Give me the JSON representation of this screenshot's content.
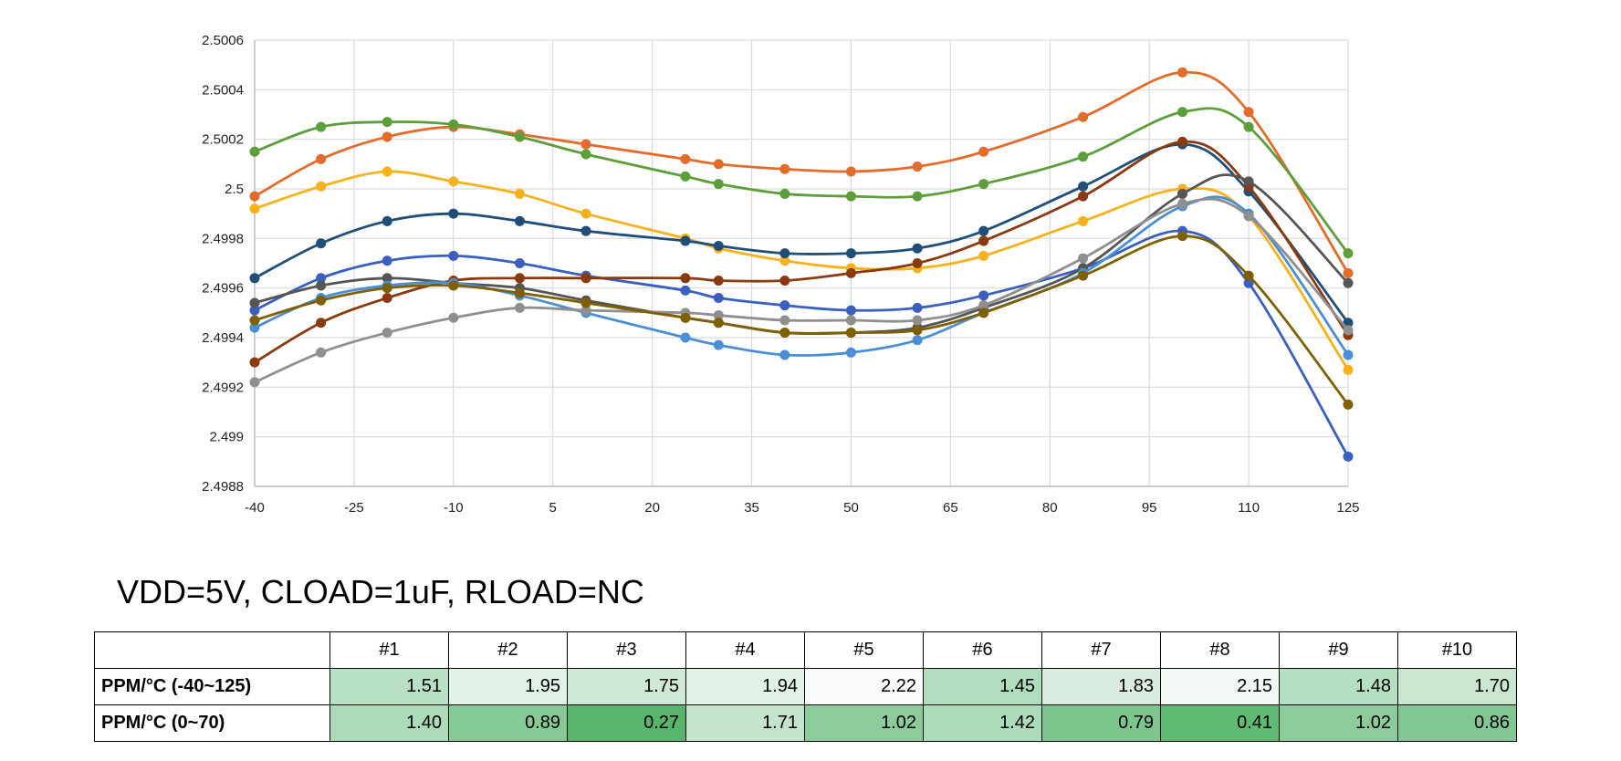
{
  "chart_data": {
    "type": "line",
    "title": "",
    "xlabel": "",
    "ylabel": "",
    "x": [
      -40,
      -30,
      -20,
      -10,
      0,
      10,
      25,
      30,
      40,
      50,
      60,
      70,
      85,
      100,
      110,
      125
    ],
    "xlim": [
      -40,
      125
    ],
    "ylim": [
      2.4988,
      2.5006
    ],
    "x_ticks": [
      "-40",
      "-25",
      "-10",
      "5",
      "20",
      "35",
      "50",
      "65",
      "80",
      "95",
      "110",
      "125"
    ],
    "y_ticks": [
      "2.4988",
      "2.499",
      "2.4992",
      "2.4994",
      "2.4996",
      "2.4998",
      "2.5",
      "2.5002",
      "2.5004",
      "2.5006"
    ],
    "grid": true,
    "smooth": true,
    "series": [
      {
        "color": "#e36c2b",
        "values": [
          2.49997,
          2.50012,
          2.50021,
          2.50025,
          2.50022,
          2.50018,
          2.50012,
          2.5001,
          2.50008,
          2.50007,
          2.50009,
          2.50015,
          2.50029,
          2.50047,
          2.50031,
          2.49966
        ]
      },
      {
        "color": "#5b9e3a",
        "values": [
          2.50015,
          2.50025,
          2.50027,
          2.50026,
          2.50021,
          2.50014,
          2.50005,
          2.50002,
          2.49998,
          2.49997,
          2.49997,
          2.50002,
          2.50013,
          2.50031,
          2.50025,
          2.49974
        ]
      },
      {
        "color": "#f7b11c",
        "values": [
          2.49992,
          2.50001,
          2.50007,
          2.50003,
          2.49998,
          2.4999,
          2.4998,
          2.49976,
          2.49971,
          2.49968,
          2.49968,
          2.49973,
          2.49987,
          2.5,
          2.49989,
          2.49927
        ]
      },
      {
        "color": "#1f4e79",
        "values": [
          2.49964,
          2.49978,
          2.49987,
          2.4999,
          2.49987,
          2.49983,
          2.49979,
          2.49977,
          2.49974,
          2.49974,
          2.49976,
          2.49983,
          2.50001,
          2.50018,
          2.49999,
          2.49946
        ]
      },
      {
        "color": "#3a5fbf",
        "values": [
          2.49951,
          2.49964,
          2.49971,
          2.49973,
          2.4997,
          2.49965,
          2.49959,
          2.49956,
          2.49953,
          2.49951,
          2.49952,
          2.49957,
          2.49968,
          2.49983,
          2.49962,
          2.49892
        ]
      },
      {
        "color": "#8b3a0f",
        "values": [
          2.4993,
          2.49946,
          2.49956,
          2.49963,
          2.49964,
          2.49964,
          2.49964,
          2.49963,
          2.49963,
          2.49966,
          2.4997,
          2.49979,
          2.49997,
          2.50019,
          2.50001,
          2.49941
        ]
      },
      {
        "color": "#555555",
        "values": [
          2.49954,
          2.49961,
          2.49964,
          2.49962,
          2.4996,
          2.49955,
          2.49948,
          2.49946,
          2.49942,
          2.49942,
          2.49944,
          2.49952,
          2.49968,
          2.49998,
          2.50003,
          2.49962
        ]
      },
      {
        "color": "#4a8fd6",
        "values": [
          2.49944,
          2.49956,
          2.49961,
          2.49962,
          2.49957,
          2.4995,
          2.4994,
          2.49937,
          2.49933,
          2.49934,
          2.49939,
          2.4995,
          2.49966,
          2.49993,
          2.4999,
          2.49933
        ]
      },
      {
        "color": "#8f8f8f",
        "values": [
          2.49922,
          2.49934,
          2.49942,
          2.49948,
          2.49952,
          2.49951,
          2.4995,
          2.49949,
          2.49947,
          2.49947,
          2.49947,
          2.49953,
          2.49972,
          2.49994,
          2.49989,
          2.49943
        ]
      },
      {
        "color": "#7f6000",
        "values": [
          2.49947,
          2.49955,
          2.4996,
          2.49961,
          2.49958,
          2.49954,
          2.49948,
          2.49946,
          2.49942,
          2.49942,
          2.49943,
          2.4995,
          2.49965,
          2.49981,
          2.49965,
          2.49913
        ]
      }
    ]
  },
  "caption": "VDD=5V, CLOAD=1uF, RLOAD=NC",
  "table": {
    "columns": [
      "#1",
      "#2",
      "#3",
      "#4",
      "#5",
      "#6",
      "#7",
      "#8",
      "#9",
      "#10"
    ],
    "rows": [
      {
        "label": "PPM/°C (-40~125)",
        "values": [
          "1.51",
          "1.95",
          "1.75",
          "1.94",
          "2.22",
          "1.45",
          "1.83",
          "2.15",
          "1.48",
          "1.70"
        ],
        "colors": [
          "#b7e0c4",
          "#e1f2e6",
          "#cfe9d7",
          "#e0f1e5",
          "#f8fbf9",
          "#b0ddbd",
          "#d8eddf",
          "#f2f8f4",
          "#b4dfc1",
          "#c9e6d1"
        ]
      },
      {
        "label": "PPM/°C (0~70)",
        "values": [
          "1.40",
          "0.89",
          "0.27",
          "1.71",
          "1.02",
          "1.42",
          "0.79",
          "0.41",
          "1.02",
          "0.86"
        ],
        "colors": [
          "#acdbba",
          "#85c995",
          "#58b66c",
          "#c4e4cd",
          "#8ccc9b",
          "#addcbb",
          "#7cc58d",
          "#5fba72",
          "#8ccc9b",
          "#82c793"
        ]
      }
    ]
  }
}
